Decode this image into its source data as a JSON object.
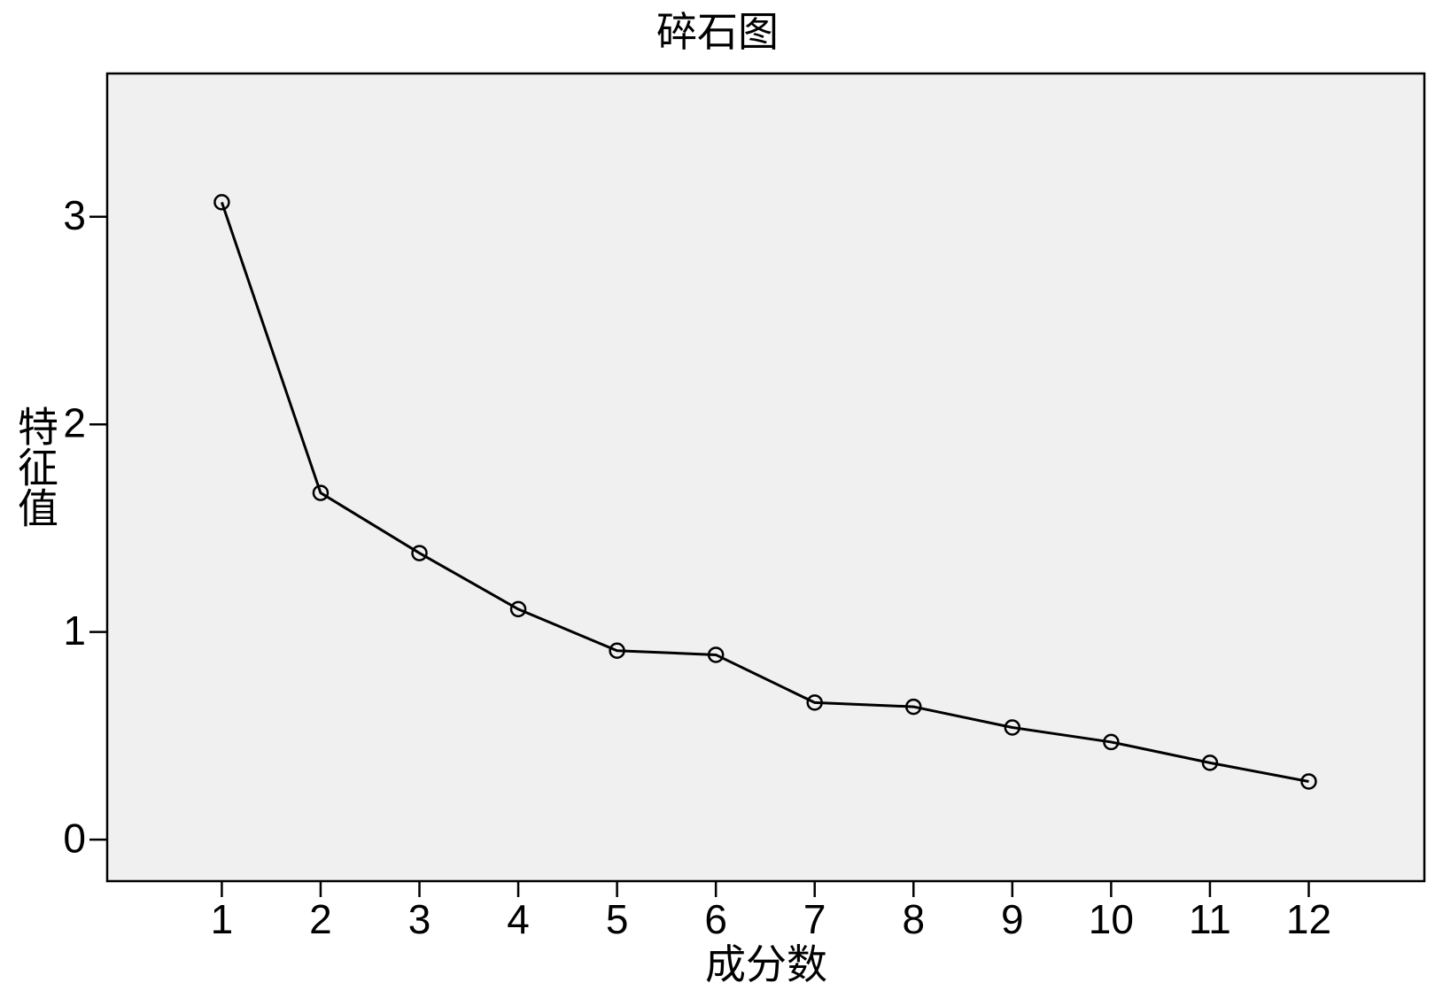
{
  "chart_data": {
    "type": "line",
    "title": "碎石图",
    "x_label": "成分数",
    "y_label": "特征值",
    "x": [
      1,
      2,
      3,
      4,
      5,
      6,
      7,
      8,
      9,
      10,
      11,
      12
    ],
    "series": [
      {
        "color": "#000000",
        "values": [
          3.07,
          1.67,
          1.38,
          1.11,
          0.91,
          0.89,
          0.66,
          0.64,
          0.54,
          0.47,
          0.37,
          0.28
        ]
      }
    ],
    "xlim": [
      -0.16,
      13.17
    ],
    "xticks": [
      1,
      2,
      3,
      4,
      5,
      6,
      7,
      8,
      9,
      10,
      11,
      12
    ],
    "ylim": [
      -0.2,
      3.69
    ],
    "yticks": [
      0,
      1,
      2,
      3
    ],
    "grid": false
  }
}
